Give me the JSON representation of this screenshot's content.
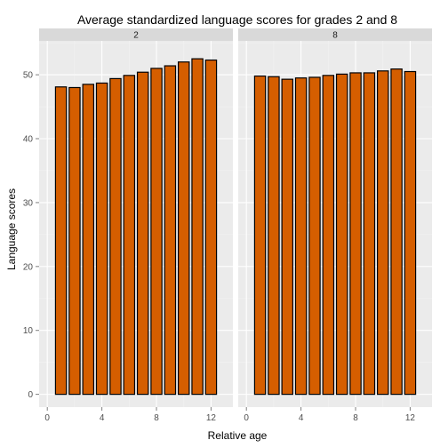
{
  "chart_data": {
    "type": "bar",
    "title": "Average standardized language scores for grades 2 and 8",
    "xlabel": "Relative age",
    "ylabel": "Language scores",
    "x_ticks": [
      0,
      4,
      8,
      12
    ],
    "y_ticks": [
      0,
      10,
      20,
      30,
      40,
      50
    ],
    "xlim": [
      -0.6,
      13.6
    ],
    "ylim": [
      -2,
      55.3
    ],
    "grid": true,
    "bar_fill": "#d55e00",
    "bar_stroke": "#000000",
    "panel_bg": "#ebebeb",
    "strip_bg": "#d9d9d9",
    "panels": [
      {
        "label": "2",
        "x": [
          1,
          2,
          3,
          4,
          5,
          6,
          7,
          8,
          9,
          10,
          11,
          12
        ],
        "values": [
          48.1,
          48.0,
          48.5,
          48.7,
          49.4,
          49.9,
          50.4,
          51.0,
          51.4,
          52.0,
          52.5,
          52.3
        ]
      },
      {
        "label": "8",
        "x": [
          1,
          2,
          3,
          4,
          5,
          6,
          7,
          8,
          9,
          10,
          11,
          12
        ],
        "values": [
          49.8,
          49.7,
          49.3,
          49.5,
          49.6,
          49.9,
          50.1,
          50.3,
          50.3,
          50.6,
          50.9,
          50.5
        ]
      }
    ]
  }
}
